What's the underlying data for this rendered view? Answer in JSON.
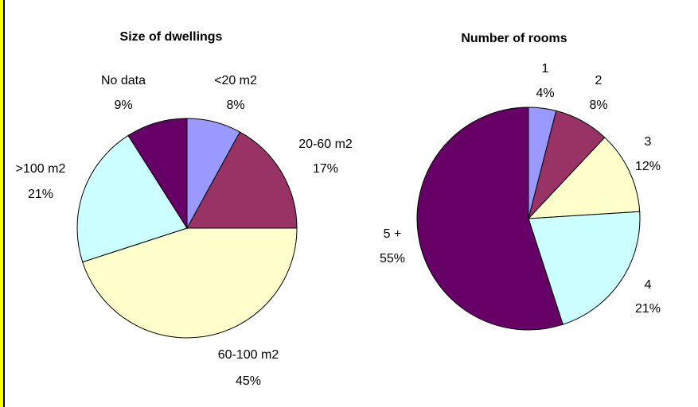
{
  "colors": {
    "edge_accent": "#ffff00",
    "edge_line": "#000000",
    "outline": "#000000"
  },
  "chart_data": [
    {
      "type": "pie",
      "title": "Size of dwellings",
      "slices": [
        {
          "label": "<20 m2",
          "value": 8,
          "pct_label": "8%",
          "color": "#9999ff"
        },
        {
          "label": "20-60 m2",
          "value": 17,
          "pct_label": "17%",
          "color": "#993366"
        },
        {
          "label": "60-100 m2",
          "value": 45,
          "pct_label": "45%",
          "color": "#ffffcc"
        },
        {
          "label": ">100 m2",
          "value": 21,
          "pct_label": "21%",
          "color": "#ccffff"
        },
        {
          "label": "No data",
          "value": 9,
          "pct_label": "9%",
          "color": "#660066"
        }
      ]
    },
    {
      "type": "pie",
      "title": "Number of rooms",
      "slices": [
        {
          "label": "1",
          "value": 4,
          "pct_label": "4%",
          "color": "#9999ff"
        },
        {
          "label": "2",
          "value": 8,
          "pct_label": "8%",
          "color": "#993366"
        },
        {
          "label": "3",
          "value": 12,
          "pct_label": "12%",
          "color": "#ffffcc"
        },
        {
          "label": "4",
          "value": 21,
          "pct_label": "21%",
          "color": "#ccffff"
        },
        {
          "label": "5 +",
          "value": 55,
          "pct_label": "55%",
          "color": "#660066"
        }
      ]
    }
  ]
}
